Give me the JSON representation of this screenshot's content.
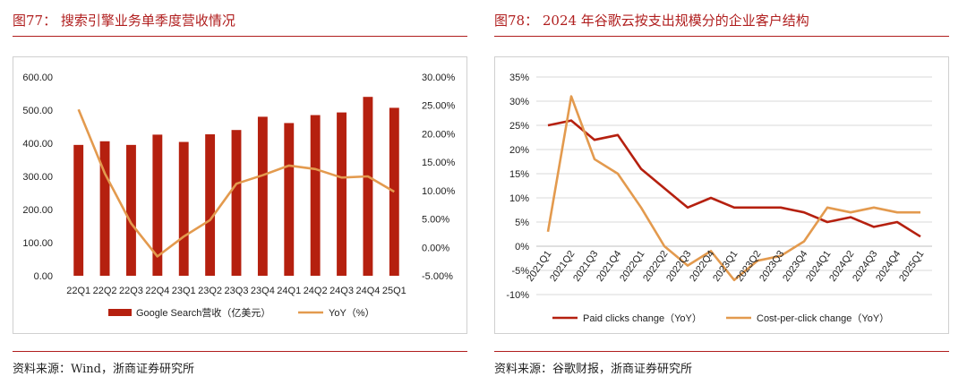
{
  "left": {
    "title": "图77：  搜索引擎业务单季度营收情况",
    "source": "资料来源：Wind，浙商证券研究所"
  },
  "right": {
    "title": "图78：  2024 年谷歌云按支出规模分的企业客户结构",
    "source": "资料来源：谷歌财报，浙商证券研究所"
  },
  "colors": {
    "title_red": "#b01e1e",
    "bar_red": "#b5200f",
    "line_orange": "#e39a4e",
    "line_dark_red": "#b5200f"
  },
  "chart_data": [
    {
      "type": "bar",
      "categories": [
        "22Q1",
        "22Q2",
        "22Q3",
        "22Q4",
        "23Q1",
        "23Q2",
        "23Q3",
        "23Q4",
        "24Q1",
        "24Q2",
        "24Q3",
        "24Q4",
        "25Q1"
      ],
      "series": [
        {
          "name": "Google Search营收（亿美元）",
          "type": "bar",
          "axis": "left",
          "values": [
            395,
            406,
            395,
            426,
            404,
            427,
            440,
            480,
            461,
            485,
            493,
            540,
            507
          ]
        },
        {
          "name": "YoY（%）",
          "type": "line",
          "axis": "right",
          "values": [
            24.3,
            13.0,
            4.2,
            -1.6,
            1.9,
            4.8,
            11.2,
            12.7,
            14.4,
            13.8,
            12.3,
            12.5,
            9.8
          ]
        }
      ],
      "ylim": [
        0,
        600
      ],
      "yticks": [
        "0.00",
        "100.00",
        "200.00",
        "300.00",
        "400.00",
        "500.00",
        "600.00"
      ],
      "y2lim": [
        -5,
        30
      ],
      "y2ticks": [
        "-5.00%",
        "0.00%",
        "5.00%",
        "10.00%",
        "15.00%",
        "20.00%",
        "25.00%",
        "30.00%"
      ],
      "legend_position": "bottom",
      "grid": false
    },
    {
      "type": "line",
      "categories": [
        "2021Q1",
        "2021Q2",
        "2021Q3",
        "2021Q4",
        "2022Q1",
        "2022Q2",
        "2022Q3",
        "2022Q4",
        "2023Q1",
        "2023Q2",
        "2023Q3",
        "2023Q4",
        "2024Q1",
        "2024Q2",
        "2024Q3",
        "2024Q4",
        "2025Q1"
      ],
      "series": [
        {
          "name": "Paid clicks change（YoY）",
          "values": [
            25,
            26,
            22,
            23,
            16,
            12,
            8,
            10,
            8,
            8,
            8,
            7,
            5,
            6,
            4,
            5,
            2
          ]
        },
        {
          "name": "Cost-per-click change（YoY）",
          "values": [
            3,
            31,
            18,
            15,
            8,
            0,
            -4,
            -1,
            -7,
            -3,
            -2,
            1,
            8,
            7,
            8,
            7,
            7
          ]
        }
      ],
      "ylim": [
        -10,
        35
      ],
      "yticks": [
        "-10%",
        "-5%",
        "0%",
        "5%",
        "10%",
        "15%",
        "20%",
        "25%",
        "30%",
        "35%"
      ],
      "legend_position": "bottom",
      "grid": true
    }
  ]
}
